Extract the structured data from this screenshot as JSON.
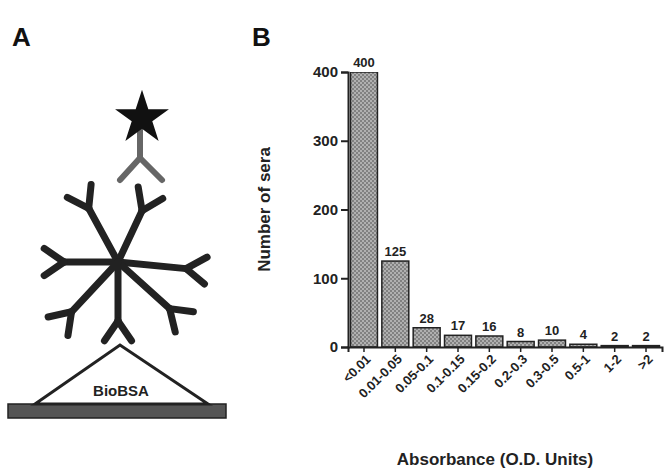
{
  "figure": {
    "panel_labels": [
      "A",
      "B"
    ],
    "diagram_label": "BioBSA"
  },
  "chart_data": {
    "type": "bar",
    "categories": [
      "<0.01",
      "0.01-0.05",
      "0.05-0.1",
      "0.1-0.15",
      "0.15-0.2",
      "0.2-0.3",
      "0.3-0.5",
      "0.5-1",
      "1-2",
      ">2"
    ],
    "values": [
      400,
      125,
      28,
      17,
      16,
      8,
      10,
      4,
      2,
      2
    ],
    "color": "#b0b0b0",
    "x_label": "Absorbance (O.D. Units)",
    "y_label": "Number of sera",
    "ylim": [
      0,
      400
    ],
    "yticks": [
      0,
      100,
      200,
      300,
      400
    ],
    "grid": false,
    "data_labels": true
  }
}
